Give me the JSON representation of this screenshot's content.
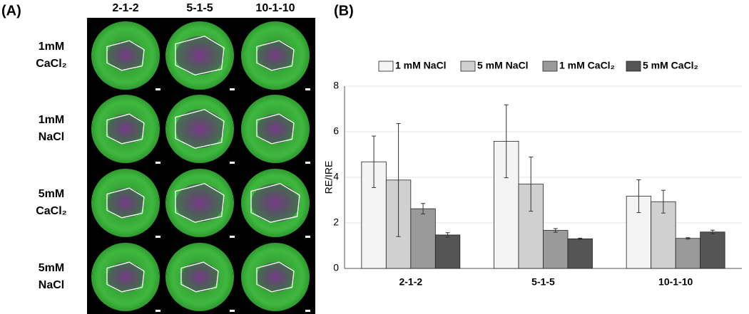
{
  "panel_a": {
    "label": "(A)",
    "columns": [
      "2-1-2",
      "5-1-5",
      "10-1-10"
    ],
    "rows": [
      [
        "1mM",
        "CaCl₂"
      ],
      [
        "1mM",
        "NaCl"
      ],
      [
        "5mM",
        "CaCl₂"
      ],
      [
        "5mM",
        "NaCl"
      ]
    ]
  },
  "chart_data": {
    "type": "bar",
    "panel_label": "(B)",
    "y_label": "RE/IRE",
    "categories": [
      "2-1-2",
      "5-1-5",
      "10-1-10"
    ],
    "series": [
      {
        "name": "1 mM NaCl",
        "color": "#f4f4f4",
        "values": [
          4.68,
          5.58,
          3.17
        ],
        "errors": [
          1.13,
          1.6,
          0.72
        ]
      },
      {
        "name": "5 mM NaCl",
        "color": "#d0d0d0",
        "values": [
          3.88,
          3.7,
          2.93
        ],
        "errors": [
          2.48,
          1.19,
          0.5
        ]
      },
      {
        "name": "1 mM CaCl₂",
        "color": "#9a9a9a",
        "values": [
          2.62,
          1.67,
          1.32
        ],
        "errors": [
          0.23,
          0.08,
          0.03
        ]
      },
      {
        "name": "5 mM CaCl₂",
        "color": "#555555",
        "values": [
          1.47,
          1.3,
          1.6
        ],
        "errors": [
          0.1,
          0.03,
          0.08
        ]
      }
    ],
    "ylim": [
      0,
      8
    ],
    "yticks": [
      0,
      2,
      4,
      6,
      8
    ],
    "grid": true,
    "legend": "top"
  }
}
